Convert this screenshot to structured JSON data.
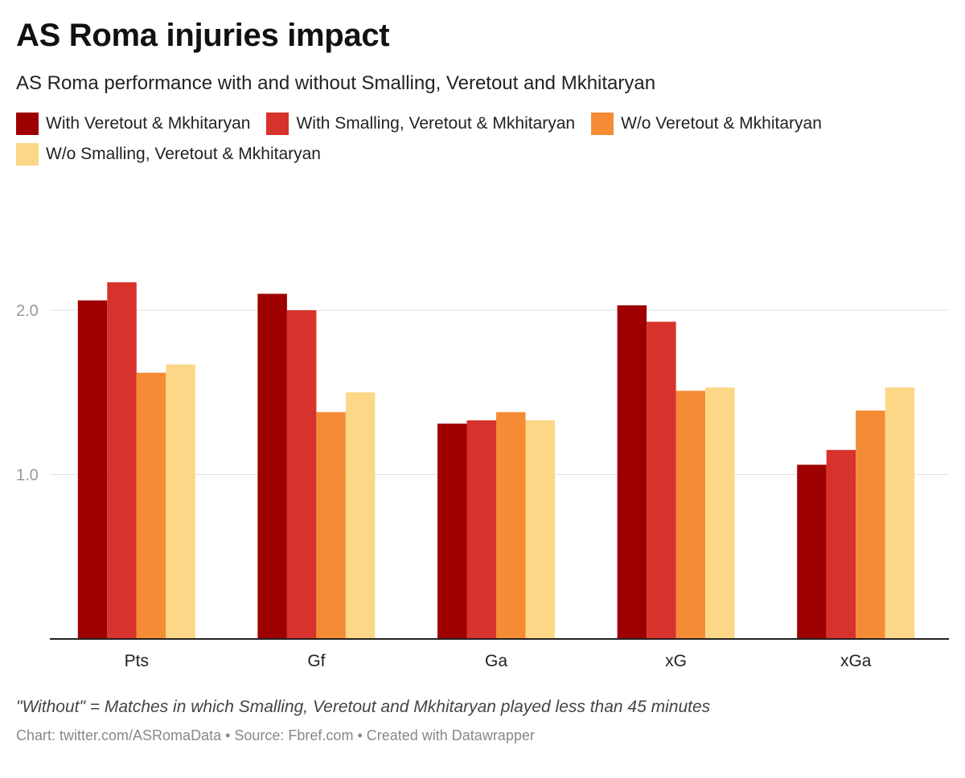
{
  "title": "AS Roma injuries impact",
  "subtitle": "AS Roma performance with and without Smalling, Veretout and Mkhitaryan",
  "legend": [
    {
      "label": "With Veretout & Mkhitaryan",
      "color": "#9e0000"
    },
    {
      "label": "With Smalling, Veretout & Mkhitaryan",
      "color": "#d8322d"
    },
    {
      "label": "W/o Veretout & Mkhitaryan",
      "color": "#f58c35"
    },
    {
      "label": "W/o Smalling, Veretout & Mkhitaryan",
      "color": "#fcd788"
    }
  ],
  "note": "\"Without\" = Matches in which Smalling, Veretout and Mkhitaryan played less than 45 minutes",
  "credit": "Chart: twitter.com/ASRomaData • Source: Fbref.com • Created with Datawrapper",
  "chart_data": {
    "type": "bar",
    "categories": [
      "Pts",
      "Gf",
      "Ga",
      "xG",
      "xGa"
    ],
    "series": [
      {
        "name": "With Veretout & Mkhitaryan",
        "color": "#9e0000",
        "values": [
          2.06,
          2.1,
          1.31,
          2.03,
          1.06
        ]
      },
      {
        "name": "With Smalling, Veretout & Mkhitaryan",
        "color": "#d8322d",
        "values": [
          2.17,
          2.0,
          1.33,
          1.93,
          1.15
        ]
      },
      {
        "name": "W/o Veretout & Mkhitaryan",
        "color": "#f58c35",
        "values": [
          1.62,
          1.38,
          1.38,
          1.51,
          1.39
        ]
      },
      {
        "name": "W/o Smalling, Veretout & Mkhitaryan",
        "color": "#fcd788",
        "values": [
          1.67,
          1.5,
          1.33,
          1.53,
          1.53
        ]
      }
    ],
    "yticks": [
      "1.0",
      "2.0"
    ],
    "ylim": [
      0,
      2.4
    ],
    "grid": true,
    "legend_position": "top"
  }
}
